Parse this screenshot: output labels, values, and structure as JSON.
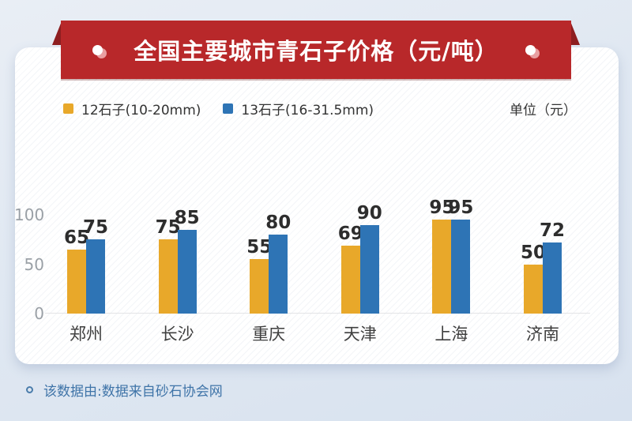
{
  "colors": {
    "banner_red": "#b8282a",
    "banner_fold_red": "#8e1e20",
    "series_12_yellow": "#e8a82a",
    "series_13_blue": "#2e74b5",
    "background_blue": "#dfe7f1",
    "card_white": "#ffffff",
    "footer_text_blue": "#3f74a8",
    "axis_label_gray": "#9aa0a6",
    "value_label_dark": "#2d2d2d"
  },
  "banner": {
    "title": "全国主要城市青石子价格（元/吨）"
  },
  "legend": {
    "items": [
      {
        "label": "12石子(10-20mm)",
        "color": "#e8a82a"
      },
      {
        "label": "13石子(16-31.5mm)",
        "color": "#2e74b5"
      }
    ],
    "unit_label": "单位（元）"
  },
  "chart_data": {
    "type": "bar",
    "title": "全国主要城市青石子价格（元/吨）",
    "categories": [
      "郑州",
      "长沙",
      "重庆",
      "天津",
      "上海",
      "济南"
    ],
    "series": [
      {
        "name": "12石子(10-20mm)",
        "color": "#e8a82a",
        "values": [
          65,
          75,
          55,
          69,
          95,
          50
        ]
      },
      {
        "name": "13石子(16-31.5mm)",
        "color": "#2e74b5",
        "values": [
          75,
          85,
          80,
          90,
          95,
          72
        ]
      }
    ],
    "ylabel": "元",
    "ylim": [
      0,
      110
    ],
    "yticks": [
      0,
      50,
      100
    ],
    "grid": false,
    "value_labels": true,
    "legend_position": "top-left"
  },
  "footer": {
    "note": "该数据由:数据来自砂石协会网"
  }
}
